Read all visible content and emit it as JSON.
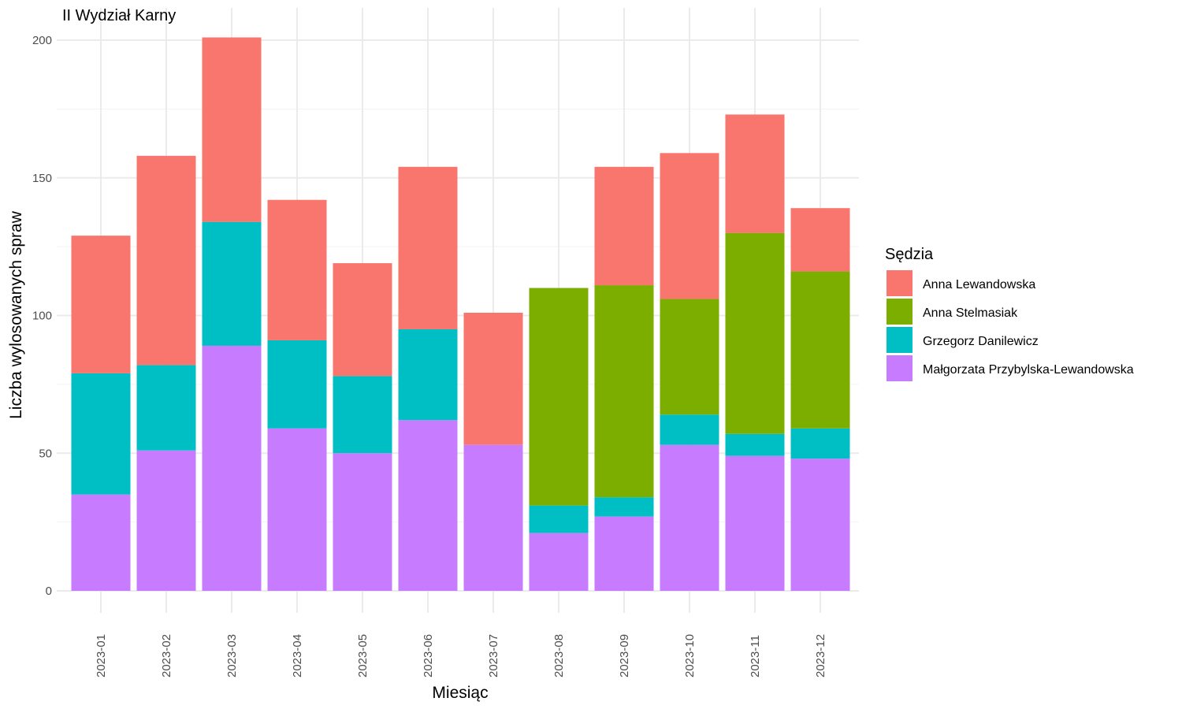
{
  "chart_data": {
    "type": "bar",
    "stacked": true,
    "title": "II Wydział Karny",
    "xlabel": "Miesiąc",
    "ylabel": "Liczba wylosowanych spraw",
    "ylim": [
      0,
      200
    ],
    "yticks": [
      0,
      50,
      100,
      150,
      200
    ],
    "grid": true,
    "legend": {
      "title": "Sędzia",
      "position": "right"
    },
    "categories": [
      "2023-01",
      "2023-02",
      "2023-03",
      "2023-04",
      "2023-05",
      "2023-06",
      "2023-07",
      "2023-08",
      "2023-09",
      "2023-10",
      "2023-11",
      "2023-12"
    ],
    "series": [
      {
        "name": "Anna Lewandowska",
        "color": "#F8766D",
        "values": [
          50,
          76,
          67,
          51,
          41,
          59,
          48,
          0,
          43,
          53,
          43,
          23
        ]
      },
      {
        "name": "Anna Stelmasiak",
        "color": "#7CAE00",
        "values": [
          0,
          0,
          0,
          0,
          0,
          0,
          0,
          79,
          77,
          42,
          73,
          57
        ]
      },
      {
        "name": "Grzegorz Danilewicz",
        "color": "#00BFC4",
        "values": [
          44,
          31,
          45,
          32,
          28,
          33,
          0,
          10,
          7,
          11,
          8,
          11
        ]
      },
      {
        "name": "Małgorzata Przybylska-Lewandowska",
        "color": "#C77CFF",
        "values": [
          35,
          51,
          89,
          59,
          50,
          62,
          53,
          21,
          27,
          53,
          49,
          48
        ]
      }
    ]
  }
}
